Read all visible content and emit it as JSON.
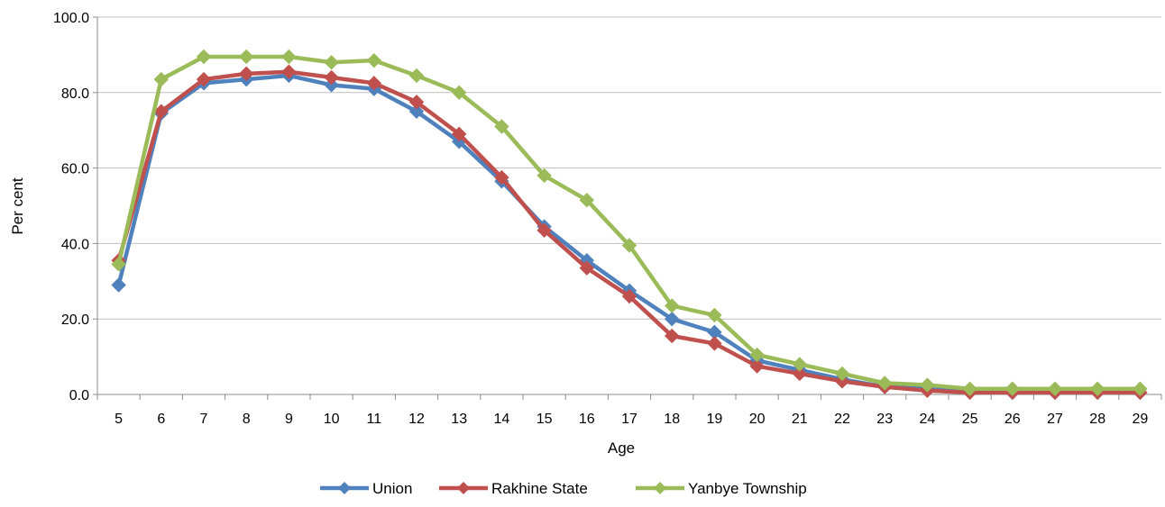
{
  "chart_data": {
    "type": "line",
    "title": "",
    "xlabel": "Age",
    "ylabel": "Per cent",
    "ylim": [
      0,
      100
    ],
    "y_ticks": [
      "0.0",
      "20.0",
      "40.0",
      "60.0",
      "80.0",
      "100.0"
    ],
    "y_tick_values": [
      0,
      20,
      40,
      60,
      80,
      100
    ],
    "categories": [
      "5",
      "6",
      "7",
      "8",
      "9",
      "10",
      "11",
      "12",
      "13",
      "14",
      "15",
      "16",
      "17",
      "18",
      "19",
      "20",
      "21",
      "22",
      "23",
      "24",
      "25",
      "26",
      "27",
      "28",
      "29"
    ],
    "grid": true,
    "legend_position": "bottom",
    "series": [
      {
        "name": "Union",
        "color": "#4F81BD",
        "marker": "diamond",
        "values": [
          29.0,
          74.5,
          82.5,
          83.5,
          84.5,
          82.0,
          81.0,
          75.0,
          67.0,
          56.5,
          44.5,
          35.5,
          27.5,
          20.0,
          16.5,
          9.0,
          6.5,
          4.0,
          2.0,
          1.5,
          1.0,
          0.5,
          0.5,
          0.5,
          0.5
        ]
      },
      {
        "name": "Rakhine State",
        "color": "#C0504D",
        "marker": "diamond",
        "values": [
          35.5,
          75.0,
          83.5,
          85.0,
          85.5,
          84.0,
          82.5,
          77.5,
          69.0,
          57.5,
          43.5,
          33.5,
          26.0,
          15.5,
          13.5,
          7.5,
          5.5,
          3.5,
          2.0,
          1.0,
          0.5,
          0.5,
          0.5,
          0.5,
          0.5
        ]
      },
      {
        "name": "Yanbye Township",
        "color": "#9BBB59",
        "marker": "diamond",
        "values": [
          34.5,
          83.5,
          89.5,
          89.5,
          89.5,
          88.0,
          88.5,
          84.5,
          80.0,
          71.0,
          58.0,
          51.5,
          39.5,
          23.5,
          21.0,
          10.5,
          8.0,
          5.5,
          3.0,
          2.5,
          1.5,
          1.5,
          1.5,
          1.5,
          1.5
        ]
      }
    ]
  }
}
